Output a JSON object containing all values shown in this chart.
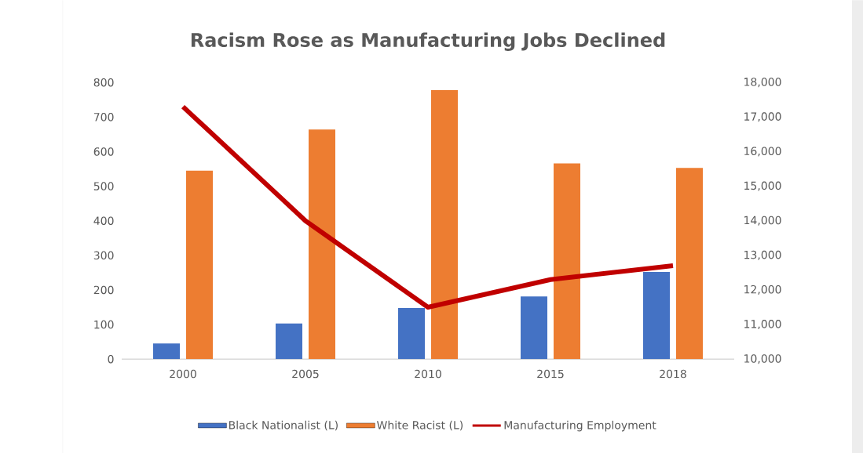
{
  "chart_data": {
    "type": "bar",
    "title": "Racism Rose as Manufacturing Jobs Declined",
    "categories": [
      "2000",
      "2005",
      "2010",
      "2015",
      "2018"
    ],
    "series": [
      {
        "name": "Black Nationalist (L)",
        "color": "#4472c4",
        "values": [
          45,
          103,
          148,
          181,
          252
        ]
      },
      {
        "name": "White Racist (L)",
        "color": "#ed7d31",
        "values": [
          545,
          664,
          778,
          566,
          553
        ]
      },
      {
        "name": "Manufacturing Employment",
        "type": "line",
        "axis": "y2",
        "color": "#c00000",
        "values": [
          17300,
          14000,
          11500,
          12300,
          12700
        ]
      }
    ],
    "ylim": [
      0,
      800
    ],
    "yticks": [
      0,
      100,
      200,
      300,
      400,
      500,
      600,
      700,
      800
    ],
    "y2lim": [
      10000,
      18000
    ],
    "y2ticks": [
      {
        "value": 10000,
        "label": "10,000"
      },
      {
        "value": 11000,
        "label": "11,000"
      },
      {
        "value": 12000,
        "label": "12,000"
      },
      {
        "value": 13000,
        "label": "13,000"
      },
      {
        "value": 14000,
        "label": "14,000"
      },
      {
        "value": 15000,
        "label": "15,000"
      },
      {
        "value": 16000,
        "label": "16,000"
      },
      {
        "value": 17000,
        "label": "17,000"
      },
      {
        "value": 18000,
        "label": "18,000"
      }
    ],
    "grid": false,
    "legend": "bottom",
    "marker": "none",
    "line_style": "solid"
  }
}
